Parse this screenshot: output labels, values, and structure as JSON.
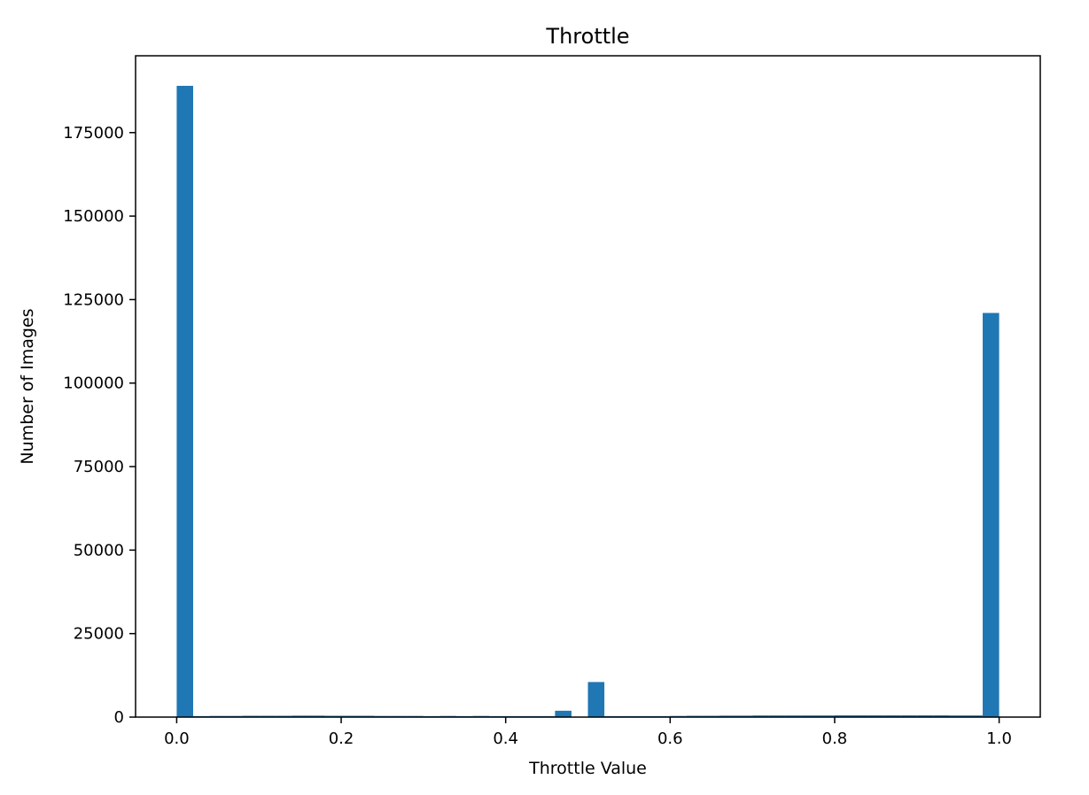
{
  "chart_data": {
    "type": "bar",
    "title": "Throttle",
    "xlabel": "Throttle Value",
    "ylabel": "Number of Images",
    "xlim": [
      -0.05,
      1.05
    ],
    "ylim": [
      0,
      198000
    ],
    "xticks": [
      0.0,
      0.2,
      0.4,
      0.6,
      0.8,
      1.0
    ],
    "xtick_labels": [
      "0.0",
      "0.2",
      "0.4",
      "0.6",
      "0.8",
      "1.0"
    ],
    "yticks": [
      0,
      25000,
      50000,
      75000,
      100000,
      125000,
      150000,
      175000
    ],
    "ytick_labels": [
      "0",
      "25000",
      "50000",
      "75000",
      "100000",
      "125000",
      "150000",
      "175000"
    ],
    "bin_start": 0.0,
    "bin_width": 0.02,
    "values": [
      189000,
      300,
      350,
      350,
      400,
      400,
      400,
      450,
      450,
      400,
      400,
      400,
      350,
      350,
      350,
      300,
      350,
      300,
      350,
      300,
      300,
      300,
      300,
      1900,
      0,
      10500,
      300,
      300,
      300,
      300,
      350,
      400,
      400,
      450,
      450,
      500,
      500,
      500,
      500,
      500,
      550,
      550,
      550,
      550,
      550,
      550,
      550,
      500,
      500,
      121000
    ],
    "bar_color": "#1f77b4",
    "grid": false,
    "legend": "none"
  }
}
